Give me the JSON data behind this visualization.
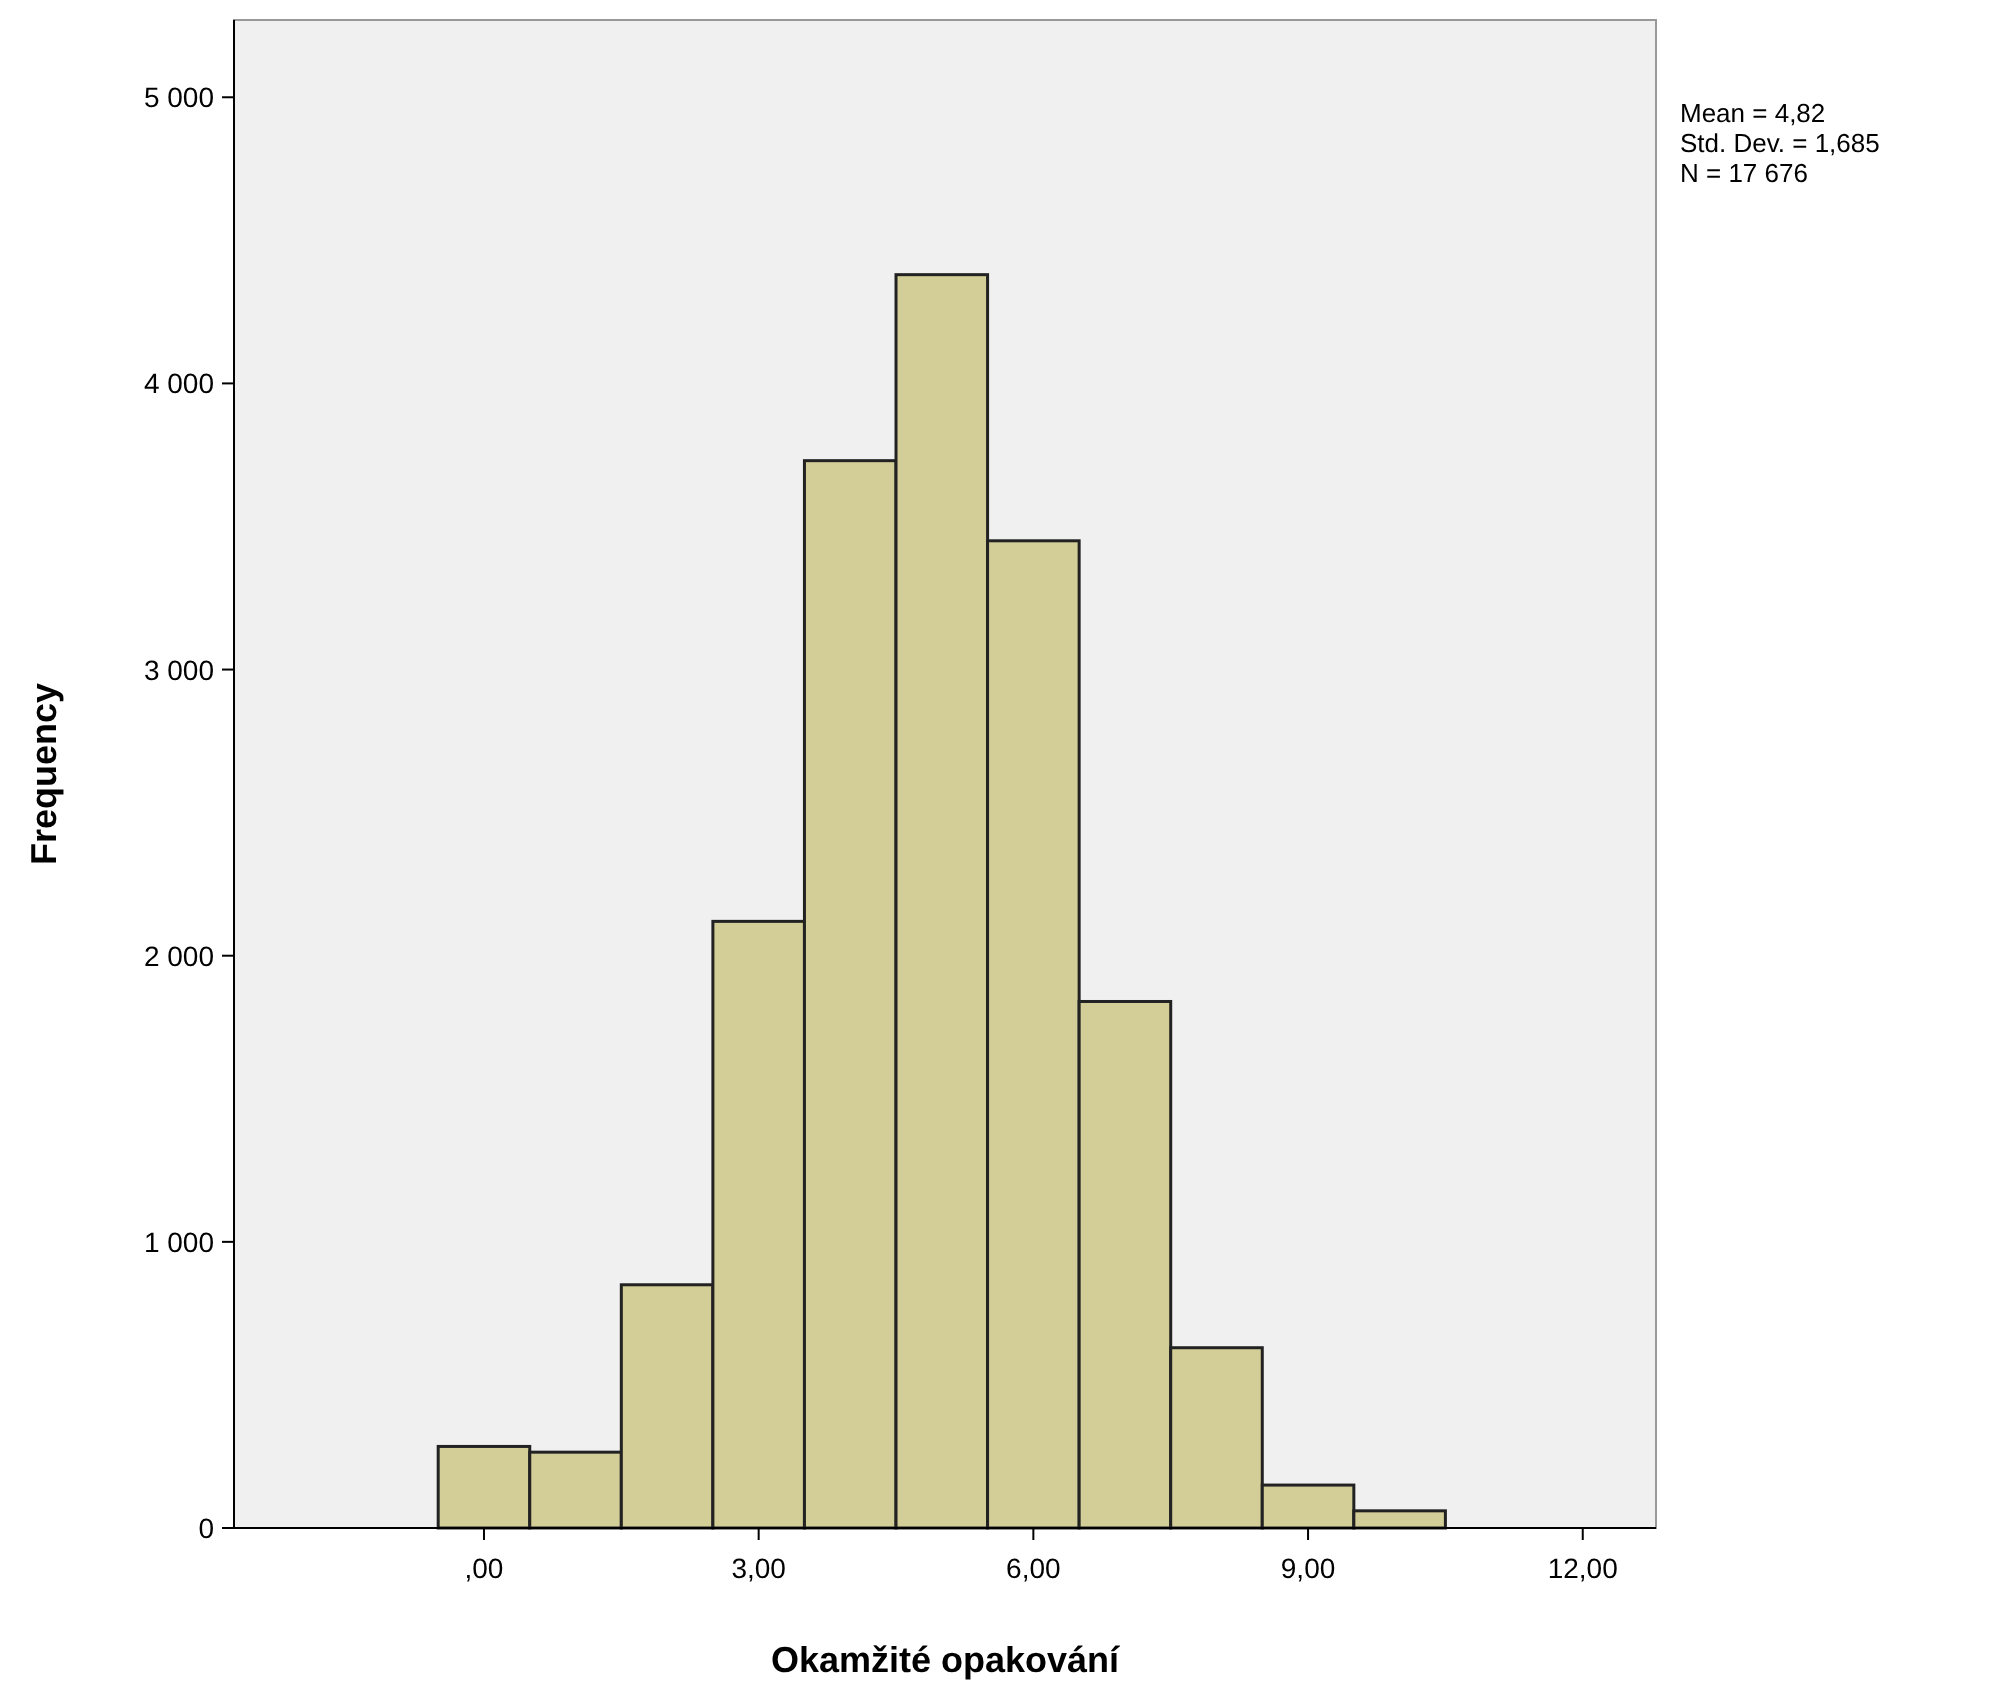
{
  "chart_data": {
    "type": "histogram",
    "xlabel": "Okamžité opakování",
    "ylabel": "Frequency",
    "bins": [
      -0.5,
      0.5,
      1.5,
      2.5,
      3.5,
      4.5,
      5.5,
      6.5,
      7.5,
      8.5,
      9.5,
      10.5
    ],
    "values": [
      285,
      265,
      850,
      2120,
      3730,
      4380,
      3450,
      1840,
      630,
      150,
      60
    ],
    "color": "#d3ce97",
    "xlim": [
      -2.73,
      12.8
    ],
    "xticks": [
      {
        "value": 0,
        "label": ",00"
      },
      {
        "value": 3,
        "label": "3,00"
      },
      {
        "value": 6,
        "label": "6,00"
      },
      {
        "value": 9,
        "label": "9,00"
      },
      {
        "value": 12,
        "label": "12,00"
      }
    ],
    "ylim": [
      0,
      5270
    ],
    "yticks": [
      {
        "value": 0,
        "label": "0"
      },
      {
        "value": 1000,
        "label": "1 000"
      },
      {
        "value": 2000,
        "label": "2 000"
      },
      {
        "value": 3000,
        "label": "3 000"
      },
      {
        "value": 4000,
        "label": "4 000"
      },
      {
        "value": 5000,
        "label": "5 000"
      }
    ],
    "annotations": [
      "Mean = 4,82",
      "Std. Dev. = 1,685",
      "N = 17 676"
    ]
  }
}
